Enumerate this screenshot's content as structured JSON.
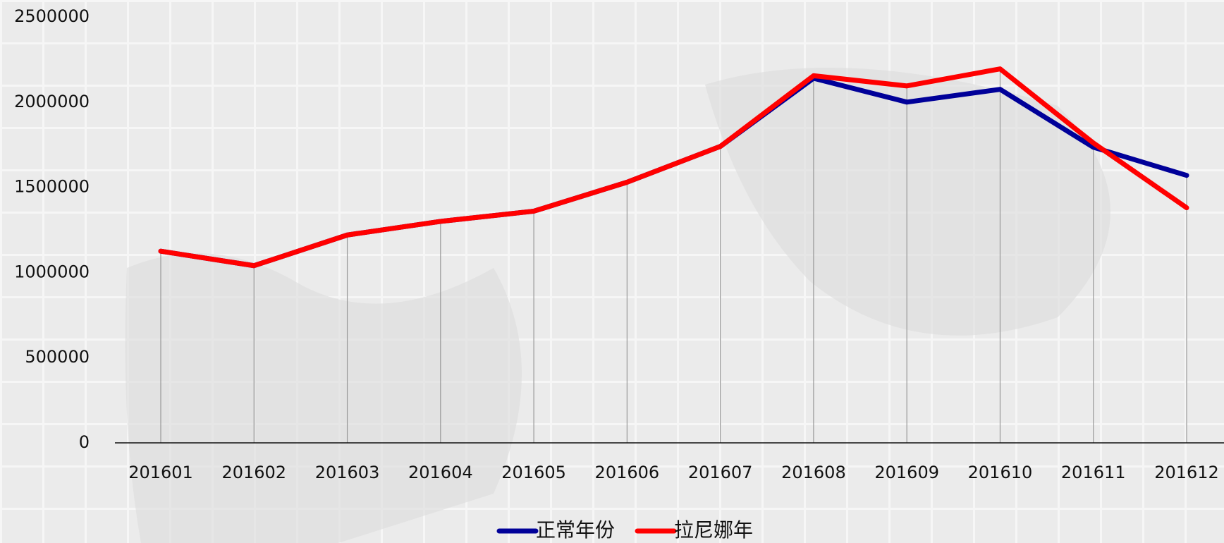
{
  "chart_data": {
    "type": "line",
    "categories": [
      "201601",
      "201602",
      "201603",
      "201604",
      "201605",
      "201606",
      "201607",
      "201608",
      "201609",
      "201610",
      "201611",
      "201612"
    ],
    "series": [
      {
        "name": "正常年份",
        "color": "#000099",
        "values": [
          1125000,
          1040000,
          1220000,
          1300000,
          1360000,
          1530000,
          1740000,
          2140000,
          2000000,
          2075000,
          1735000,
          1570000
        ]
      },
      {
        "name": "拉尼娜年",
        "color": "#ff0000",
        "values": [
          1125000,
          1040000,
          1220000,
          1300000,
          1360000,
          1530000,
          1740000,
          2155000,
          2095000,
          2195000,
          1760000,
          1380000
        ]
      }
    ],
    "ylim": [
      0,
      2500000
    ],
    "yticks": [
      0,
      500000,
      1000000,
      1500000,
      2000000,
      2500000
    ],
    "drop_lines": true,
    "legend": "bottom"
  }
}
